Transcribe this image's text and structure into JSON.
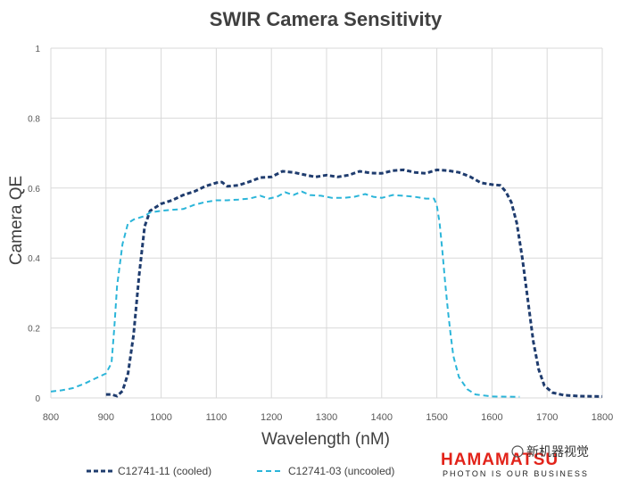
{
  "chart_data": {
    "type": "line",
    "title": "SWIR Camera Sensitivity",
    "xlabel": "Wavelength (nM)",
    "ylabel": "Camera QE",
    "xlim": [
      800,
      1800
    ],
    "ylim": [
      0,
      1
    ],
    "x_ticks": [
      "800",
      "900",
      "1000",
      "1100",
      "1200",
      "1300",
      "1400",
      "1500",
      "1600",
      "1700",
      "1800"
    ],
    "y_ticks": [
      "0",
      "0.2",
      "0.4",
      "0.6",
      "0.8",
      "1"
    ],
    "grid": "vertical and horizontal",
    "legend_position": "bottom-left",
    "series": [
      {
        "name": "C12741-11 (cooled)",
        "color": "#1f3c6e",
        "style": "dashed",
        "points": [
          [
            900,
            0.01
          ],
          [
            910,
            0.01
          ],
          [
            920,
            0.005
          ],
          [
            930,
            0.02
          ],
          [
            940,
            0.07
          ],
          [
            950,
            0.18
          ],
          [
            960,
            0.35
          ],
          [
            970,
            0.49
          ],
          [
            980,
            0.535
          ],
          [
            990,
            0.545
          ],
          [
            1000,
            0.555
          ],
          [
            1020,
            0.565
          ],
          [
            1040,
            0.58
          ],
          [
            1060,
            0.59
          ],
          [
            1080,
            0.605
          ],
          [
            1100,
            0.615
          ],
          [
            1110,
            0.617
          ],
          [
            1120,
            0.605
          ],
          [
            1140,
            0.608
          ],
          [
            1160,
            0.618
          ],
          [
            1180,
            0.63
          ],
          [
            1200,
            0.632
          ],
          [
            1220,
            0.648
          ],
          [
            1240,
            0.645
          ],
          [
            1260,
            0.638
          ],
          [
            1280,
            0.632
          ],
          [
            1300,
            0.637
          ],
          [
            1320,
            0.632
          ],
          [
            1340,
            0.637
          ],
          [
            1360,
            0.648
          ],
          [
            1380,
            0.643
          ],
          [
            1400,
            0.642
          ],
          [
            1420,
            0.65
          ],
          [
            1440,
            0.652
          ],
          [
            1460,
            0.645
          ],
          [
            1480,
            0.642
          ],
          [
            1500,
            0.652
          ],
          [
            1520,
            0.65
          ],
          [
            1540,
            0.645
          ],
          [
            1560,
            0.633
          ],
          [
            1580,
            0.615
          ],
          [
            1600,
            0.61
          ],
          [
            1615,
            0.608
          ],
          [
            1625,
            0.59
          ],
          [
            1635,
            0.56
          ],
          [
            1645,
            0.5
          ],
          [
            1655,
            0.4
          ],
          [
            1665,
            0.28
          ],
          [
            1675,
            0.16
          ],
          [
            1685,
            0.08
          ],
          [
            1695,
            0.035
          ],
          [
            1710,
            0.015
          ],
          [
            1730,
            0.008
          ],
          [
            1760,
            0.005
          ],
          [
            1800,
            0.004
          ]
        ]
      },
      {
        "name": "C12741-03 (uncooled)",
        "color": "#2bb5d9",
        "style": "dashed",
        "points": [
          [
            800,
            0.018
          ],
          [
            820,
            0.022
          ],
          [
            840,
            0.028
          ],
          [
            860,
            0.04
          ],
          [
            880,
            0.055
          ],
          [
            900,
            0.07
          ],
          [
            910,
            0.1
          ],
          [
            915,
            0.2
          ],
          [
            920,
            0.32
          ],
          [
            930,
            0.44
          ],
          [
            940,
            0.5
          ],
          [
            950,
            0.51
          ],
          [
            960,
            0.515
          ],
          [
            970,
            0.52
          ],
          [
            980,
            0.53
          ],
          [
            1000,
            0.535
          ],
          [
            1020,
            0.538
          ],
          [
            1040,
            0.54
          ],
          [
            1060,
            0.552
          ],
          [
            1080,
            0.56
          ],
          [
            1100,
            0.565
          ],
          [
            1120,
            0.565
          ],
          [
            1140,
            0.567
          ],
          [
            1160,
            0.57
          ],
          [
            1180,
            0.578
          ],
          [
            1195,
            0.57
          ],
          [
            1210,
            0.575
          ],
          [
            1225,
            0.588
          ],
          [
            1240,
            0.58
          ],
          [
            1255,
            0.59
          ],
          [
            1270,
            0.58
          ],
          [
            1290,
            0.578
          ],
          [
            1310,
            0.572
          ],
          [
            1330,
            0.572
          ],
          [
            1350,
            0.575
          ],
          [
            1370,
            0.583
          ],
          [
            1385,
            0.575
          ],
          [
            1400,
            0.572
          ],
          [
            1420,
            0.58
          ],
          [
            1440,
            0.578
          ],
          [
            1460,
            0.575
          ],
          [
            1480,
            0.57
          ],
          [
            1495,
            0.57
          ],
          [
            1500,
            0.55
          ],
          [
            1505,
            0.5
          ],
          [
            1510,
            0.42
          ],
          [
            1515,
            0.33
          ],
          [
            1520,
            0.25
          ],
          [
            1525,
            0.18
          ],
          [
            1530,
            0.12
          ],
          [
            1540,
            0.06
          ],
          [
            1555,
            0.025
          ],
          [
            1570,
            0.01
          ],
          [
            1600,
            0.004
          ],
          [
            1650,
            0.003
          ]
        ]
      }
    ]
  },
  "logo": {
    "brand": "HAMAMATSU",
    "tagline": "PHOTON IS OUR BUSINESS"
  },
  "watermark": {
    "text": "新机器视觉"
  }
}
